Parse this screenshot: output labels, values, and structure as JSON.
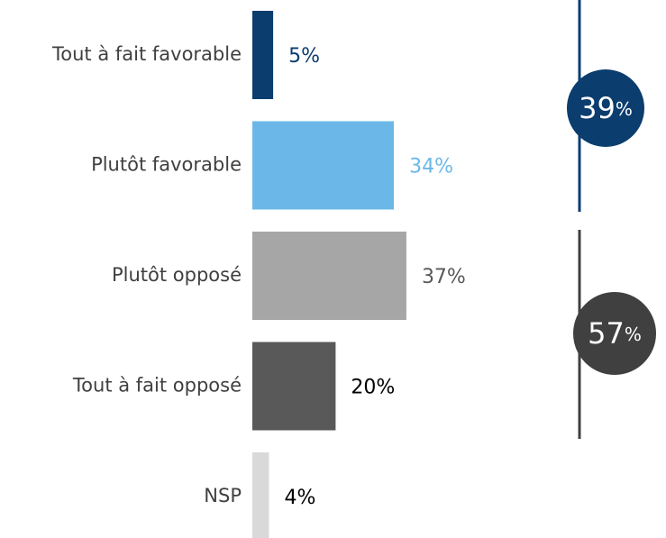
{
  "chart_data": {
    "type": "bar",
    "categories": [
      "Tout à fait favorable",
      "Plutôt favorable",
      "Plutôt opposé",
      "Tout à fait opposé",
      "NSP"
    ],
    "values": [
      5,
      34,
      37,
      20,
      4
    ],
    "value_labels": [
      "5%",
      "34%",
      "37%",
      "20%",
      "4%"
    ],
    "colors": [
      "#0b3d6e",
      "#6bb8e8",
      "#a6a6a6",
      "#595959",
      "#d9d9d9"
    ],
    "value_label_colors": [
      "#0b3d6e",
      "#6bb8e8",
      "#595959",
      "#000000",
      "#000000"
    ],
    "groups": [
      {
        "value": 39,
        "label": "39%",
        "color": "#0b3d6e"
      },
      {
        "value": 57,
        "label": "57%",
        "color": "#404040"
      }
    ]
  }
}
